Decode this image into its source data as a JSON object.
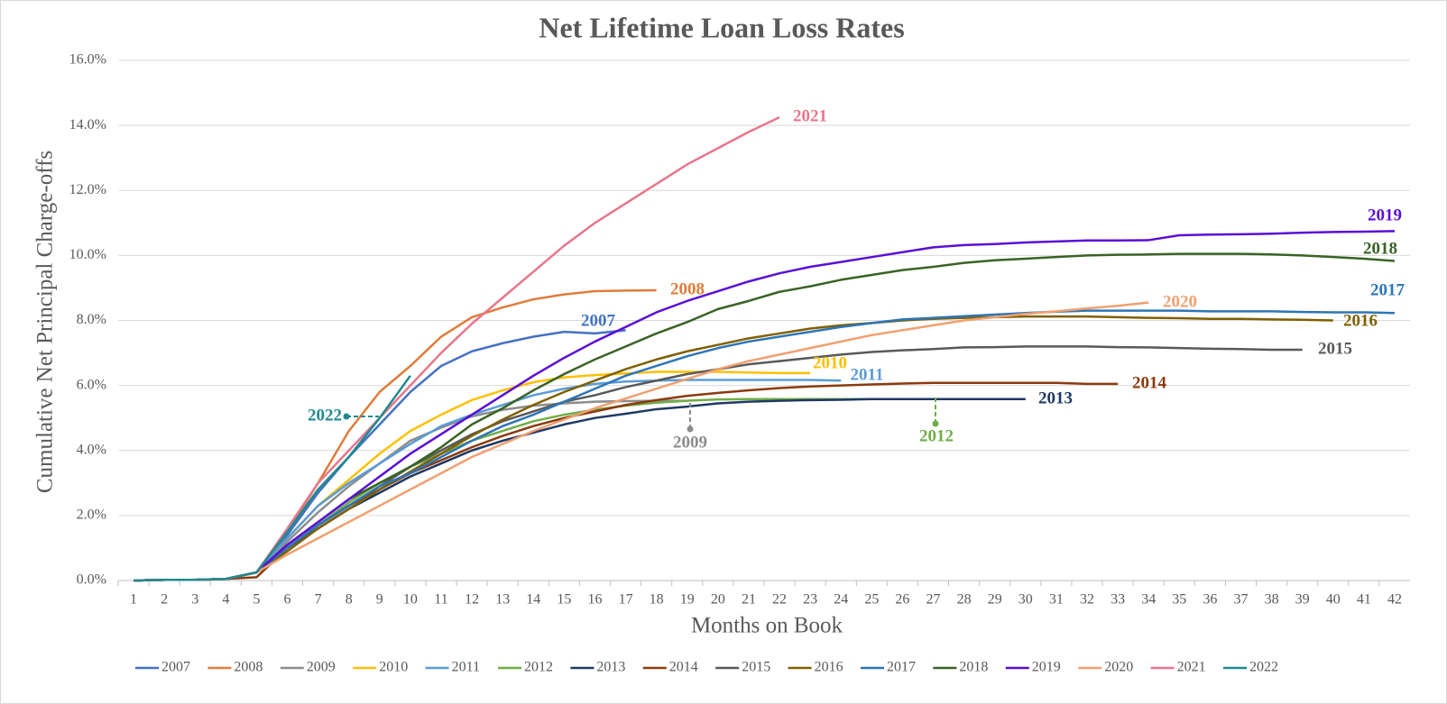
{
  "chart_data": {
    "type": "line",
    "title": "Net Lifetime Loan Loss Rates",
    "x_label": "Months on Book",
    "y_label": "Cumulative Net Principal Charge-offs",
    "categories": [
      "1",
      "2",
      "3",
      "4",
      "5",
      "6",
      "7",
      "8",
      "9",
      "10",
      "11",
      "12",
      "13",
      "14",
      "15",
      "16",
      "17",
      "18",
      "19",
      "20",
      "21",
      "22",
      "23",
      "24",
      "25",
      "26",
      "27",
      "28",
      "29",
      "30",
      "31",
      "32",
      "33",
      "34",
      "35",
      "36",
      "37",
      "38",
      "39",
      "40",
      "41",
      "42"
    ],
    "ylim": [
      0,
      16
    ],
    "yticks": [
      {
        "value": 0,
        "label": "0.0%"
      },
      {
        "value": 2,
        "label": "2.0%"
      },
      {
        "value": 4,
        "label": "4.0%"
      },
      {
        "value": 6,
        "label": "6.0%"
      },
      {
        "value": 8,
        "label": "8.0%"
      },
      {
        "value": 10,
        "label": "10.0%"
      },
      {
        "value": 12,
        "label": "12.0%"
      },
      {
        "value": 14,
        "label": "14.0%"
      },
      {
        "value": 16,
        "label": "16.0%"
      }
    ],
    "grid": true,
    "legend": "bottom",
    "series": [
      {
        "name": "2007",
        "color": "#4472C4",
        "values": [
          0,
          0.02,
          0.02,
          0.05,
          0.25,
          1.4,
          2.7,
          3.8,
          4.8,
          5.8,
          6.6,
          7.05,
          7.3,
          7.5,
          7.65,
          7.6,
          7.7,
          null,
          null,
          null,
          null,
          null,
          null,
          null,
          null,
          null,
          null,
          null,
          null,
          null,
          null,
          null,
          null,
          null,
          null,
          null,
          null,
          null,
          null,
          null,
          null,
          null
        ]
      },
      {
        "name": "2008",
        "color": "#E07B39",
        "values": [
          0,
          0.02,
          0.02,
          0.05,
          0.25,
          1.5,
          3.0,
          4.6,
          5.8,
          6.6,
          7.5,
          8.1,
          8.4,
          8.65,
          8.8,
          8.9,
          8.92,
          8.93,
          null,
          null,
          null,
          null,
          null,
          null,
          null,
          null,
          null,
          null,
          null,
          null,
          null,
          null,
          null,
          null,
          null,
          null,
          null,
          null,
          null,
          null,
          null,
          null
        ]
      },
      {
        "name": "2009",
        "color": "#8C8C8C",
        "values": [
          0,
          0.02,
          0.02,
          0.05,
          0.25,
          1.2,
          2.1,
          2.9,
          3.6,
          4.3,
          4.7,
          5.05,
          5.25,
          5.38,
          5.45,
          5.5,
          5.52,
          5.53,
          5.53,
          null,
          null,
          null,
          null,
          null,
          null,
          null,
          null,
          null,
          null,
          null,
          null,
          null,
          null,
          null,
          null,
          null,
          null,
          null,
          null,
          null,
          null,
          null
        ]
      },
      {
        "name": "2010",
        "color": "#FFC000",
        "values": [
          0,
          0.02,
          0.02,
          0.05,
          0.25,
          1.3,
          2.3,
          3.1,
          3.9,
          4.6,
          5.1,
          5.55,
          5.85,
          6.1,
          6.25,
          6.32,
          6.37,
          6.42,
          6.42,
          6.42,
          6.4,
          6.38,
          6.38,
          null,
          null,
          null,
          null,
          null,
          null,
          null,
          null,
          null,
          null,
          null,
          null,
          null,
          null,
          null,
          null,
          null,
          null,
          null
        ]
      },
      {
        "name": "2011",
        "color": "#5B9BD5",
        "values": [
          0,
          0.02,
          0.02,
          0.05,
          0.25,
          1.3,
          2.3,
          3.0,
          3.6,
          4.2,
          4.75,
          5.1,
          5.4,
          5.7,
          5.9,
          6.05,
          6.12,
          6.15,
          6.17,
          6.17,
          6.17,
          6.17,
          6.17,
          6.15,
          null,
          null,
          null,
          null,
          null,
          null,
          null,
          null,
          null,
          null,
          null,
          null,
          null,
          null,
          null,
          null,
          null,
          null
        ]
      },
      {
        "name": "2012",
        "color": "#70AD47",
        "values": [
          0,
          0.02,
          0.02,
          0.05,
          0.25,
          1.0,
          1.7,
          2.4,
          3.0,
          3.5,
          3.9,
          4.3,
          4.6,
          4.9,
          5.1,
          5.25,
          5.38,
          5.47,
          5.53,
          5.57,
          5.58,
          5.58,
          5.58,
          5.58,
          5.58,
          5.58,
          5.58,
          null,
          null,
          null,
          null,
          null,
          null,
          null,
          null,
          null,
          null,
          null,
          null,
          null,
          null,
          null
        ]
      },
      {
        "name": "2013",
        "color": "#1F3864",
        "values": [
          0,
          0.02,
          0.02,
          0.05,
          0.25,
          1.0,
          1.6,
          2.2,
          2.7,
          3.2,
          3.6,
          4.0,
          4.3,
          4.55,
          4.8,
          5.0,
          5.13,
          5.27,
          5.35,
          5.45,
          5.5,
          5.53,
          5.55,
          5.56,
          5.58,
          5.58,
          5.58,
          5.58,
          5.58,
          5.58,
          null,
          null,
          null,
          null,
          null,
          null,
          null,
          null,
          null,
          null,
          null,
          null
        ]
      },
      {
        "name": "2014",
        "color": "#8B3A0E",
        "values": [
          0,
          0.02,
          0.02,
          0.05,
          0.1,
          1.0,
          1.7,
          2.3,
          2.8,
          3.3,
          3.7,
          4.1,
          4.45,
          4.75,
          5.0,
          5.2,
          5.4,
          5.55,
          5.68,
          5.77,
          5.85,
          5.92,
          5.97,
          6.0,
          6.03,
          6.06,
          6.08,
          6.08,
          6.08,
          6.08,
          6.08,
          6.05,
          6.05,
          null,
          null,
          null,
          null,
          null,
          null,
          null,
          null,
          null
        ]
      },
      {
        "name": "2015",
        "color": "#595959",
        "values": [
          0,
          0.02,
          0.02,
          0.05,
          0.25,
          1.0,
          1.7,
          2.3,
          2.9,
          3.5,
          4.0,
          4.5,
          4.9,
          5.2,
          5.5,
          5.7,
          5.95,
          6.15,
          6.35,
          6.5,
          6.65,
          6.75,
          6.85,
          6.95,
          7.03,
          7.08,
          7.12,
          7.17,
          7.18,
          7.2,
          7.2,
          7.2,
          7.18,
          7.17,
          7.15,
          7.13,
          7.12,
          7.1,
          7.1,
          null,
          null,
          null
        ]
      },
      {
        "name": "2016",
        "color": "#7F6000",
        "values": [
          0,
          0.02,
          0.02,
          0.05,
          0.25,
          0.9,
          1.6,
          2.2,
          2.8,
          3.35,
          3.9,
          4.45,
          4.95,
          5.4,
          5.8,
          6.15,
          6.5,
          6.8,
          7.05,
          7.25,
          7.45,
          7.6,
          7.75,
          7.85,
          7.92,
          8.0,
          8.05,
          8.08,
          8.1,
          8.12,
          8.12,
          8.12,
          8.1,
          8.08,
          8.07,
          8.05,
          8.05,
          8.03,
          8.02,
          8.0,
          null,
          null
        ]
      },
      {
        "name": "2017",
        "color": "#2E75B6",
        "values": [
          0,
          0.02,
          0.02,
          0.05,
          0.25,
          1.0,
          1.7,
          2.3,
          2.9,
          3.3,
          3.8,
          4.3,
          4.75,
          5.1,
          5.5,
          5.9,
          6.3,
          6.6,
          6.9,
          7.15,
          7.35,
          7.5,
          7.65,
          7.8,
          7.92,
          8.03,
          8.08,
          8.13,
          8.18,
          8.23,
          8.27,
          8.3,
          8.3,
          8.3,
          8.3,
          8.28,
          8.28,
          8.28,
          8.26,
          8.25,
          8.25,
          8.23
        ]
      },
      {
        "name": "2018",
        "color": "#3A6325",
        "values": [
          0,
          0.02,
          0.02,
          0.05,
          0.25,
          1.1,
          1.8,
          2.5,
          3.0,
          3.5,
          4.1,
          4.8,
          5.3,
          5.85,
          6.35,
          6.8,
          7.2,
          7.6,
          7.95,
          8.35,
          8.6,
          8.88,
          9.05,
          9.25,
          9.4,
          9.55,
          9.65,
          9.77,
          9.85,
          9.9,
          9.95,
          10.0,
          10.02,
          10.03,
          10.05,
          10.05,
          10.05,
          10.03,
          10.0,
          9.95,
          9.9,
          9.83
        ]
      },
      {
        "name": "2019",
        "color": "#5A0FD6",
        "values": [
          0,
          0.02,
          0.02,
          0.05,
          0.25,
          1.1,
          1.8,
          2.5,
          3.2,
          3.9,
          4.5,
          5.1,
          5.7,
          6.3,
          6.85,
          7.35,
          7.8,
          8.25,
          8.6,
          8.9,
          9.2,
          9.45,
          9.65,
          9.8,
          9.95,
          10.1,
          10.25,
          10.32,
          10.35,
          10.4,
          10.43,
          10.46,
          10.46,
          10.47,
          10.62,
          10.64,
          10.65,
          10.67,
          10.7,
          10.72,
          10.73,
          10.75
        ]
      },
      {
        "name": "2020",
        "color": "#F0A070",
        "values": [
          0,
          0.02,
          0.02,
          0.05,
          0.25,
          0.8,
          1.3,
          1.8,
          2.3,
          2.8,
          3.3,
          3.8,
          4.2,
          4.6,
          4.95,
          5.3,
          5.6,
          5.9,
          6.2,
          6.5,
          6.75,
          6.95,
          7.15,
          7.35,
          7.55,
          7.7,
          7.85,
          8.0,
          8.1,
          8.2,
          8.28,
          8.37,
          8.45,
          8.55,
          null,
          null,
          null,
          null,
          null,
          null,
          null,
          null
        ]
      },
      {
        "name": "2021",
        "color": "#E8768C",
        "values": [
          0,
          0.02,
          0.02,
          0.05,
          0.25,
          1.6,
          3.0,
          4.0,
          5.0,
          6.0,
          7.0,
          7.9,
          8.7,
          9.5,
          10.3,
          11.0,
          11.6,
          12.2,
          12.8,
          13.3,
          13.8,
          14.25,
          null,
          null,
          null,
          null,
          null,
          null,
          null,
          null,
          null,
          null,
          null,
          null,
          null,
          null,
          null,
          null,
          null,
          null,
          null,
          null
        ]
      },
      {
        "name": "2022",
        "color": "#1F8A8E",
        "values": [
          0,
          0.02,
          0.02,
          0.05,
          0.25,
          1.5,
          2.8,
          3.8,
          5.0,
          6.3,
          null,
          null,
          null,
          null,
          null,
          null,
          null,
          null,
          null,
          null,
          null,
          null,
          null,
          null,
          null,
          null,
          null,
          null,
          null,
          null,
          null,
          null,
          null,
          null,
          null,
          null,
          null,
          null,
          null,
          null,
          null,
          null
        ]
      }
    ]
  }
}
